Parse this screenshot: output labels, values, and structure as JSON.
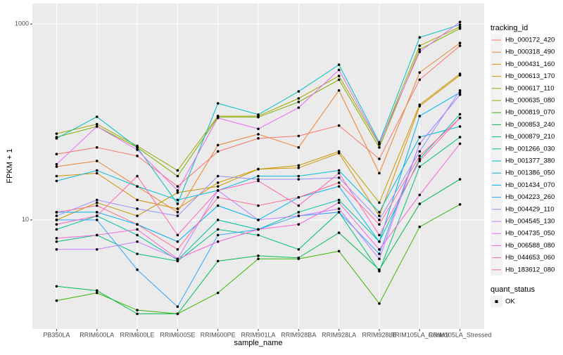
{
  "chart_data": {
    "type": "line",
    "log_y": true,
    "grid": true,
    "x_label": "sample_name",
    "y_label": "FPKM + 1",
    "legend_title": "tracking_id",
    "legend_position": "right",
    "categories": [
      "PB350LA",
      "RRIM600LA",
      "RRIM600LE",
      "RRIM600SE",
      "RRIM600PE",
      "RRIM901LA",
      "RRIM928BA",
      "RRIM928LA",
      "RRIM928LE",
      "RRIM105LA_Control",
      "RRIM105LA_Stressed"
    ],
    "ylim": [
      0.77,
      1620
    ],
    "yticks": [
      10,
      1000
    ],
    "point_color": "#000000",
    "shape_legend": {
      "title": "quant_status",
      "labels": [
        "OK"
      ]
    },
    "series": [
      {
        "name": "Hb_000172_420",
        "color": "#F8766D",
        "values": [
          47,
          55,
          45,
          22,
          50,
          68,
          72,
          92,
          42,
          270,
          600
        ]
      },
      {
        "name": "Hb_000318_490",
        "color": "#EA8331",
        "values": [
          35,
          40,
          22,
          12,
          58,
          75,
          55,
          210,
          30,
          320,
          640
        ]
      },
      {
        "name": "Hb_000431_160",
        "color": "#D89000",
        "values": [
          28,
          30,
          16,
          13,
          24,
          33,
          34,
          48,
          11,
          145,
          300
        ]
      },
      {
        "name": "Hb_000613_170",
        "color": "#C09B00",
        "values": [
          10,
          15,
          11,
          19,
          22,
          33,
          36,
          50,
          15,
          150,
          310
        ]
      },
      {
        "name": "Hb_000617_110",
        "color": "#A3A500",
        "values": [
          76,
          95,
          57,
          32,
          115,
          115,
          174,
          295,
          59,
          600,
          937
        ]
      },
      {
        "name": "Hb_000635_080",
        "color": "#7CAE00",
        "values": [
          70,
          90,
          55,
          28,
          112,
          112,
          160,
          270,
          55,
          550,
          900
        ]
      },
      {
        "name": "Hb_000819_070",
        "color": "#39B600",
        "values": [
          1.5,
          1.8,
          1.2,
          1.1,
          1.8,
          4.0,
          4.0,
          4.8,
          1.4,
          8.5,
          14.4
        ]
      },
      {
        "name": "Hb_000853_240",
        "color": "#00BB4E",
        "values": [
          2.1,
          1.9,
          1.1,
          1.1,
          3.8,
          4.3,
          4.1,
          7.4,
          3.1,
          14.6,
          26
        ]
      },
      {
        "name": "Hb_000879_210",
        "color": "#00BF7D",
        "values": [
          6,
          7,
          4.5,
          3.8,
          8,
          7,
          5,
          12,
          3,
          35,
          70
        ]
      },
      {
        "name": "Hb_001266_030",
        "color": "#00C1A3",
        "values": [
          8,
          11,
          7,
          3.9,
          10,
          8,
          12,
          16,
          6,
          42,
          120
        ]
      },
      {
        "name": "Hb_001377_380",
        "color": "#00BFC4",
        "values": [
          68,
          113,
          55,
          14.6,
          155,
          119,
          205,
          384,
          62,
          730,
          984
        ]
      },
      {
        "name": "Hb_001386_050",
        "color": "#00BAE0",
        "values": [
          25,
          32,
          22,
          16,
          20,
          28,
          28,
          32,
          12,
          70,
          90
        ]
      },
      {
        "name": "Hb_001434_070",
        "color": "#00B0F6",
        "values": [
          12,
          12,
          9,
          6,
          14,
          10,
          17,
          22,
          6,
          115,
          200
        ]
      },
      {
        "name": "Hb_004223_260",
        "color": "#35A2FF",
        "values": [
          10,
          10,
          3.1,
          1.3,
          7,
          8,
          11,
          12,
          4.5,
          60,
          190
        ]
      },
      {
        "name": "Hb_004429_110",
        "color": "#9590FF",
        "values": [
          11,
          16,
          13,
          11,
          28,
          26,
          26,
          27,
          10,
          50,
          210
        ]
      },
      {
        "name": "Hb_004545_130",
        "color": "#C77CFF",
        "values": [
          5,
          5,
          6,
          4,
          20,
          10,
          11,
          13,
          4,
          60,
          190
        ]
      },
      {
        "name": "Hb_004735_050",
        "color": "#E76BF3",
        "values": [
          37,
          90,
          52,
          20,
          110,
          85,
          140,
          340,
          60,
          520,
          1050
        ]
      },
      {
        "name": "Hb_006588_080",
        "color": "#FA62DB",
        "values": [
          6.5,
          7,
          8,
          4,
          6,
          8,
          9,
          15,
          5,
          18,
          60
        ]
      },
      {
        "name": "Hb_044653_060",
        "color": "#FF62BC",
        "values": [
          9,
          11,
          28,
          7,
          20,
          25,
          14,
          30,
          7,
          40,
          110
        ]
      },
      {
        "name": "Hb_183612_080",
        "color": "#FF6C91",
        "values": [
          12,
          14,
          9,
          5,
          17,
          14,
          17,
          24,
          9,
          45,
          110
        ]
      }
    ]
  }
}
